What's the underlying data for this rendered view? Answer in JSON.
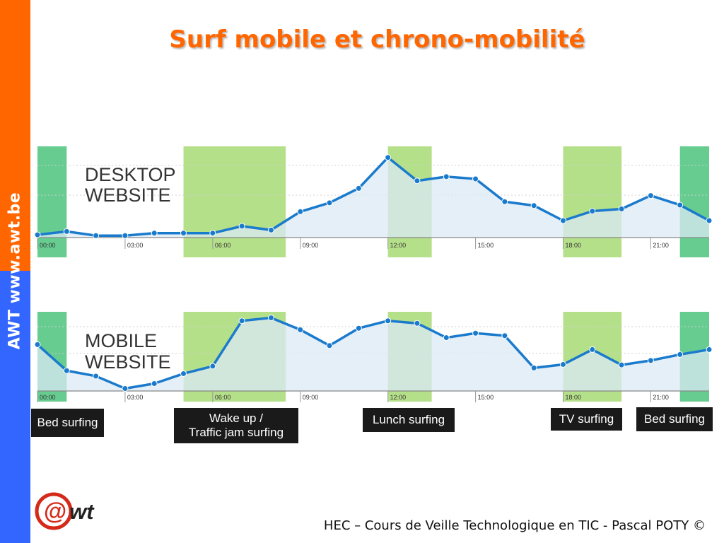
{
  "slide": {
    "title": "Surf mobile et chrono-mobilité",
    "sidebar_awt": "AWT",
    "sidebar_url": "www.awt.be",
    "footer": "HEC – Cours de Veille Technologique en TIC - Pascal POTY ©",
    "logo_text": "@wt"
  },
  "colors": {
    "accent_orange": "#FF6600",
    "accent_blue": "#3366FF",
    "line_blue": "#1a7acc",
    "area_fill": "#dbeaf6",
    "band_light_green": "#b5e08a",
    "band_dark_green": "#66cc90"
  },
  "chart_data": [
    {
      "type": "line",
      "chart_label": [
        "DESKTOP",
        "WEBSITE"
      ],
      "x_ticks": [
        "00:00",
        "03:00",
        "06:00",
        "09:00",
        "12:00",
        "15:00",
        "18:00",
        "21:00"
      ],
      "x_hours": [
        0,
        1,
        2,
        3,
        4,
        5,
        6,
        7,
        8,
        9,
        10,
        11,
        12,
        13,
        14,
        15,
        16,
        17,
        18,
        19,
        20,
        21,
        22,
        23
      ],
      "values": [
        0.5,
        1.7,
        0.2,
        0.2,
        1.1,
        1.1,
        1.1,
        3.6,
        2.2,
        8.8,
        12.0,
        17.2,
        28.3,
        19.9,
        21.4,
        20.6,
        12.4,
        11.0,
        5.6,
        9.0,
        9.8,
        14.6,
        11.2,
        5.6
      ],
      "ylim": [
        -0.5,
        30
      ],
      "grid": "dashed horizontal",
      "highlight_bands": [
        {
          "label": "Bed surfing",
          "from": 0,
          "to": 1,
          "style": "dark"
        },
        {
          "label": "Wake up / Traffic jam surfing",
          "from": 5,
          "to": 8.5,
          "style": "light"
        },
        {
          "label": "Lunch surfing",
          "from": 12,
          "to": 13.5,
          "style": "light"
        },
        {
          "label": "TV surfing",
          "from": 18,
          "to": 20,
          "style": "light"
        },
        {
          "label": "Bed surfing",
          "from": 22,
          "to": 23,
          "style": "dark"
        }
      ]
    },
    {
      "type": "line",
      "chart_label": [
        "MOBILE",
        "WEBSITE"
      ],
      "x_ticks": [
        "00:00",
        "03:00",
        "06:00",
        "09:00",
        "12:00",
        "15:00",
        "18:00",
        "21:00"
      ],
      "x_hours": [
        0,
        1,
        2,
        3,
        4,
        5,
        6,
        7,
        8,
        9,
        10,
        11,
        12,
        13,
        14,
        15,
        16,
        17,
        18,
        19,
        20,
        21,
        22,
        23
      ],
      "values": [
        18.2,
        7.7,
        5.5,
        0.5,
        2.5,
        6.5,
        9.5,
        27.8,
        29.0,
        24.2,
        17.8,
        24.8,
        27.8,
        26.8,
        21.0,
        22.8,
        21.8,
        8.8,
        10.2,
        16.2,
        10.0,
        11.8,
        14.2,
        16.2
      ],
      "ylim": [
        -0.5,
        30
      ],
      "grid": "dashed horizontal",
      "highlight_bands": [
        {
          "label": "Bed surfing",
          "from": 0,
          "to": 1,
          "style": "dark"
        },
        {
          "label": "Wake up / Traffic jam surfing",
          "from": 5,
          "to": 8.5,
          "style": "light"
        },
        {
          "label": "Lunch surfing",
          "from": 12,
          "to": 13.5,
          "style": "light"
        },
        {
          "label": "TV surfing",
          "from": 18,
          "to": 20,
          "style": "light"
        },
        {
          "label": "Bed surfing",
          "from": 22,
          "to": 23,
          "style": "dark"
        }
      ]
    }
  ],
  "labels": [
    {
      "lines": [
        "Bed surfing"
      ]
    },
    {
      "lines": [
        "Wake up /",
        "Traffic jam surfing"
      ]
    },
    {
      "lines": [
        "Lunch surfing"
      ]
    },
    {
      "lines": [
        "TV surfing"
      ]
    },
    {
      "lines": [
        "Bed surfing"
      ]
    }
  ]
}
